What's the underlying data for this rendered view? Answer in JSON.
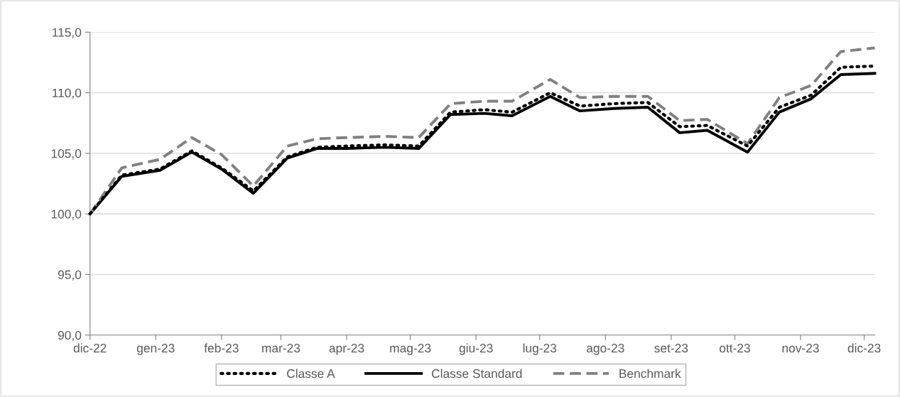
{
  "chart_data": {
    "type": "line",
    "x": [
      "2022-12-01",
      "2022-12-16",
      "2023-01-03",
      "2023-01-18",
      "2023-02-01",
      "2023-02-16",
      "2023-03-04",
      "2023-03-18",
      "2023-04-01",
      "2023-04-19",
      "2023-05-05",
      "2023-05-20",
      "2023-06-05",
      "2023-06-18",
      "2023-07-06",
      "2023-07-20",
      "2023-08-05",
      "2023-08-21",
      "2023-09-05",
      "2023-09-18",
      "2023-10-07",
      "2023-10-22",
      "2023-11-06",
      "2023-11-20",
      "2023-12-06"
    ],
    "series": [
      {
        "name": "Classe A",
        "color": "#000000",
        "line_style": "dotted",
        "values": [
          100.0,
          103.2,
          103.7,
          105.2,
          103.8,
          101.9,
          104.7,
          105.5,
          105.6,
          105.7,
          105.6,
          108.4,
          108.6,
          108.4,
          110.0,
          108.9,
          109.1,
          109.2,
          107.2,
          107.3,
          105.6,
          108.8,
          109.8,
          112.1,
          112.2
        ]
      },
      {
        "name": "Classe Standard",
        "color": "#000000",
        "line_style": "solid",
        "values": [
          100.0,
          103.1,
          103.6,
          105.1,
          103.7,
          101.7,
          104.6,
          105.4,
          105.4,
          105.5,
          105.4,
          108.2,
          108.3,
          108.1,
          109.7,
          108.5,
          108.7,
          108.8,
          106.7,
          106.9,
          105.1,
          108.4,
          109.5,
          111.5,
          111.6
        ]
      },
      {
        "name": "Benchmark",
        "color": "#808080",
        "line_style": "dashed",
        "values": [
          100.0,
          103.8,
          104.5,
          106.3,
          104.9,
          102.3,
          105.6,
          106.2,
          106.3,
          106.4,
          106.3,
          109.1,
          109.3,
          109.3,
          111.1,
          109.6,
          109.7,
          109.7,
          107.7,
          107.8,
          105.8,
          109.6,
          110.6,
          113.4,
          113.7
        ]
      }
    ],
    "xlim": [
      "2022-12-01",
      "2023-12-06"
    ],
    "xticks": [
      {
        "value": "2022-12-01",
        "label": "dic-22"
      },
      {
        "value": "2023-01-01",
        "label": "gen-23"
      },
      {
        "value": "2023-02-01",
        "label": "feb-23"
      },
      {
        "value": "2023-03-01",
        "label": "mar-23"
      },
      {
        "value": "2023-04-01",
        "label": "apr-23"
      },
      {
        "value": "2023-05-01",
        "label": "mag-23"
      },
      {
        "value": "2023-06-01",
        "label": "giu-23"
      },
      {
        "value": "2023-07-01",
        "label": "lug-23"
      },
      {
        "value": "2023-08-01",
        "label": "ago-23"
      },
      {
        "value": "2023-09-01",
        "label": "set-23"
      },
      {
        "value": "2023-10-01",
        "label": "ott-23"
      },
      {
        "value": "2023-11-01",
        "label": "nov-23"
      },
      {
        "value": "2023-12-01",
        "label": "dic-23"
      }
    ],
    "ylim": [
      90,
      115
    ],
    "yticks": [
      {
        "value": 90,
        "label": "90,0"
      },
      {
        "value": 95,
        "label": "95,0"
      },
      {
        "value": 100,
        "label": "100,0"
      },
      {
        "value": 105,
        "label": "105,0"
      },
      {
        "value": 110,
        "label": "110,0"
      },
      {
        "value": 115,
        "label": "115,0"
      }
    ],
    "grid": "y",
    "legend": "bottom",
    "marker": "none"
  }
}
